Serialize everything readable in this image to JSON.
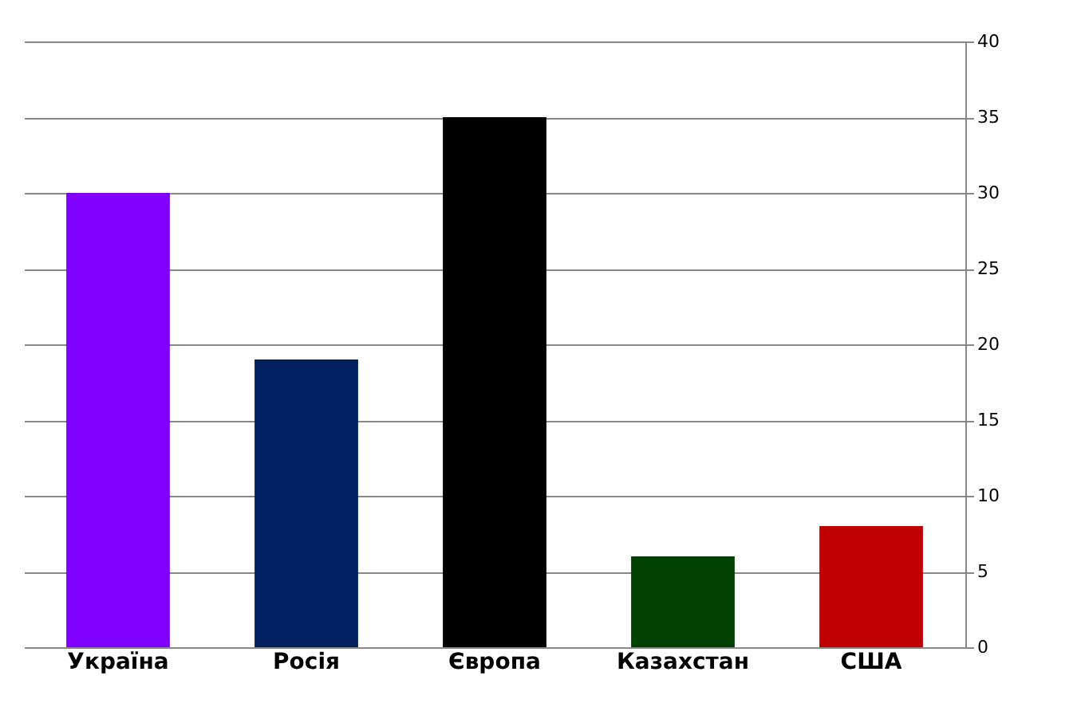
{
  "chart_data": {
    "type": "bar",
    "categories": [
      "Україна",
      "Росія",
      "Європа",
      "Казахстан",
      "США"
    ],
    "values": [
      30,
      19,
      35,
      6,
      8
    ],
    "colors": [
      "#7f00ff",
      "#002060",
      "#000000",
      "#004000",
      "#c00000"
    ],
    "ylim": [
      0,
      40
    ],
    "yticks": [
      0,
      5,
      10,
      15,
      20,
      25,
      30,
      35,
      40
    ],
    "grid": "y"
  }
}
